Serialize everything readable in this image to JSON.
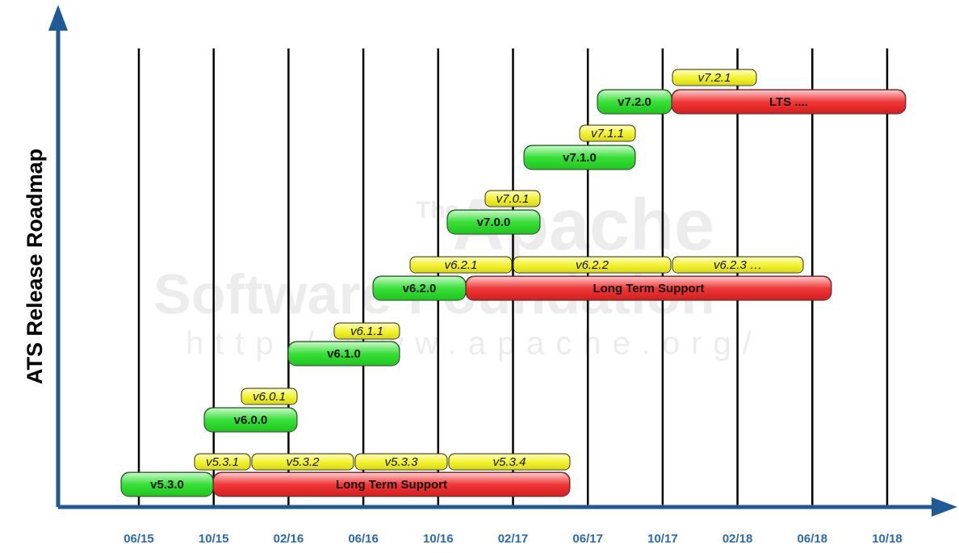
{
  "axis_title": "ATS Release Roadmap",
  "watermark": [
    "The",
    "Apache",
    "Software Foundation",
    "http://www.apache.org/"
  ],
  "dates": [
    "06/15",
    "10/15",
    "02/16",
    "06/16",
    "10/16",
    "02/17",
    "06/17",
    "10/17",
    "02/18",
    "06/18",
    "10/18"
  ],
  "releases": [
    {
      "label": "v5.3.0",
      "color": "#22dd22"
    },
    {
      "label": "Long Term Support",
      "color": "#ee2222"
    },
    {
      "label": "v5.3.1",
      "color": "#f2f21a"
    },
    {
      "label": "v5.3.2",
      "color": "#f2f21a"
    },
    {
      "label": "v5.3.3",
      "color": "#f2f21a"
    },
    {
      "label": "v5.3.4",
      "color": "#f2f21a"
    },
    {
      "label": "v6.0.0",
      "color": "#22dd22"
    },
    {
      "label": "v6.0.1",
      "color": "#f2f21a"
    },
    {
      "label": "v6.1.0",
      "color": "#22dd22"
    },
    {
      "label": "v6.1.1",
      "color": "#f2f21a"
    },
    {
      "label": "v6.2.0",
      "color": "#22dd22"
    },
    {
      "label": "Long Term Support",
      "color": "#ee2222"
    },
    {
      "label": "v6.2.1",
      "color": "#f2f21a"
    },
    {
      "label": "v6.2.2",
      "color": "#f2f21a"
    },
    {
      "label": "v6.2.3 …",
      "color": "#f2f21a"
    },
    {
      "label": "v7.0.0",
      "color": "#22dd22"
    },
    {
      "label": "v7.0.1",
      "color": "#f2f21a"
    },
    {
      "label": "v7.1.0",
      "color": "#22dd22"
    },
    {
      "label": "v7.1.1",
      "color": "#f2f21a"
    },
    {
      "label": "v7.2.0",
      "color": "#22dd22"
    },
    {
      "label": "LTS ....",
      "color": "#ee2222"
    },
    {
      "label": "v7.2.1",
      "color": "#f2f21a"
    }
  ]
}
